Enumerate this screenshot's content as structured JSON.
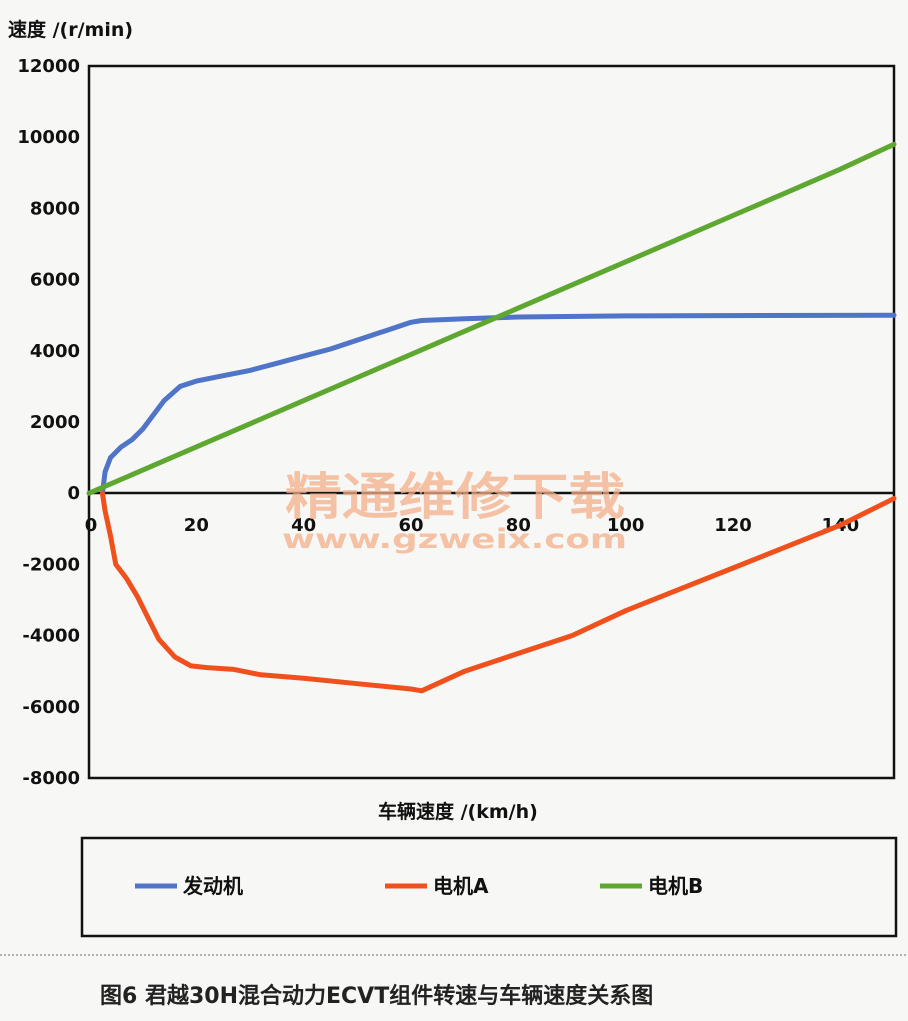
{
  "chart_data": {
    "type": "line",
    "ylabel": "速度 /(r/min)",
    "xlabel": "车辆速度 /(km/h)",
    "xlim": [
      0,
      150
    ],
    "ylim": [
      -8000,
      12000
    ],
    "x_ticks": [
      0,
      20,
      40,
      60,
      80,
      100,
      120,
      140
    ],
    "y_ticks": [
      12000,
      10000,
      8000,
      6000,
      4000,
      2000,
      0,
      -2000,
      -4000,
      -6000,
      -8000
    ],
    "grid": false,
    "legend_position": "bottom",
    "series": [
      {
        "name": "发动机",
        "color": "#4f74c8",
        "points": [
          [
            2.5,
            0
          ],
          [
            3,
            600
          ],
          [
            4,
            1000
          ],
          [
            6,
            1300
          ],
          [
            8,
            1500
          ],
          [
            10,
            1800
          ],
          [
            12,
            2200
          ],
          [
            14,
            2600
          ],
          [
            17,
            3000
          ],
          [
            20,
            3150
          ],
          [
            25,
            3300
          ],
          [
            30,
            3450
          ],
          [
            35,
            3650
          ],
          [
            40,
            3850
          ],
          [
            45,
            4050
          ],
          [
            50,
            4300
          ],
          [
            55,
            4550
          ],
          [
            60,
            4800
          ],
          [
            62,
            4850
          ],
          [
            70,
            4900
          ],
          [
            80,
            4950
          ],
          [
            100,
            4980
          ],
          [
            150,
            5000
          ]
        ]
      },
      {
        "name": "电机A",
        "color": "#f0501c",
        "points": [
          [
            2.5,
            0
          ],
          [
            3,
            -500
          ],
          [
            4,
            -1200
          ],
          [
            5,
            -2000
          ],
          [
            7,
            -2400
          ],
          [
            9,
            -2900
          ],
          [
            11,
            -3500
          ],
          [
            13,
            -4100
          ],
          [
            16,
            -4600
          ],
          [
            19,
            -4850
          ],
          [
            22,
            -4900
          ],
          [
            27,
            -4950
          ],
          [
            32,
            -5100
          ],
          [
            40,
            -5200
          ],
          [
            50,
            -5350
          ],
          [
            60,
            -5500
          ],
          [
            62,
            -5550
          ],
          [
            70,
            -5000
          ],
          [
            80,
            -4500
          ],
          [
            90,
            -4000
          ],
          [
            100,
            -3300
          ],
          [
            110,
            -2700
          ],
          [
            120,
            -2100
          ],
          [
            130,
            -1500
          ],
          [
            140,
            -900
          ],
          [
            150,
            -150
          ]
        ]
      },
      {
        "name": "电机B",
        "color": "#5ea832",
        "points": [
          [
            0,
            0
          ],
          [
            10,
            650
          ],
          [
            20,
            1300
          ],
          [
            30,
            1950
          ],
          [
            40,
            2600
          ],
          [
            50,
            3250
          ],
          [
            60,
            3900
          ],
          [
            70,
            4550
          ],
          [
            80,
            5200
          ],
          [
            90,
            5850
          ],
          [
            100,
            6500
          ],
          [
            110,
            7150
          ],
          [
            120,
            7800
          ],
          [
            130,
            8450
          ],
          [
            140,
            9100
          ],
          [
            150,
            9800
          ]
        ]
      }
    ],
    "legend": [
      "发动机",
      "电机A",
      "电机B"
    ],
    "caption": "图6 君越30H混合动力ECVT组件转速与车辆速度关系图"
  },
  "watermark": {
    "main": "精通维修下载",
    "sub": "www.gzweix.com"
  }
}
